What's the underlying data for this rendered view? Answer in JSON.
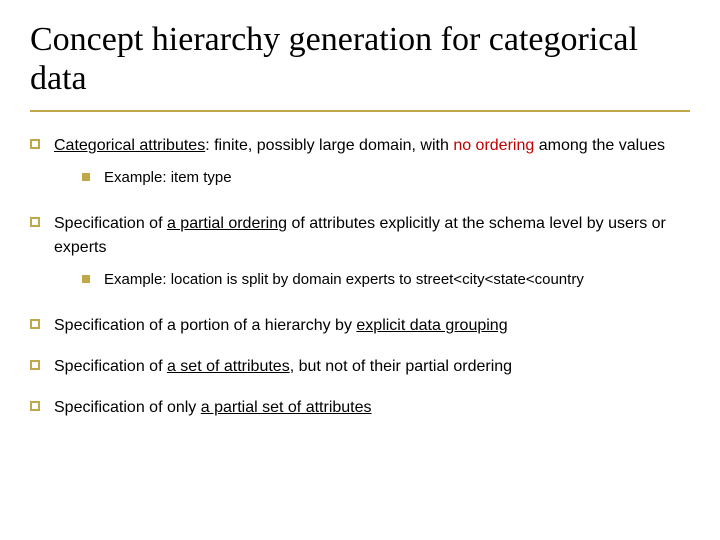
{
  "colors": {
    "accent": "#bfa74a",
    "text": "#000000",
    "highlight": "#c00000",
    "background": "#ffffff"
  },
  "typography": {
    "title_family": "Times New Roman",
    "body_family": "Verdana",
    "title_size_pt": 34,
    "l1_size_pt": 16,
    "l2_size_pt": 15
  },
  "title": "Concept hierarchy generation for categorical data",
  "items": [
    {
      "pre": "",
      "underline": "Categorical attributes",
      "mid": ": finite, possibly large domain, with ",
      "red": "no ordering",
      "post": " among the values",
      "sub": [
        "Example: item type"
      ]
    },
    {
      "pre": "Specification of ",
      "underline": "a partial ordering",
      "mid": " of attributes explicitly at the schema level by users or experts",
      "red": "",
      "post": "",
      "sub": [
        "Example: location is split by domain experts to street<city<state<country"
      ]
    },
    {
      "pre": "Specification of a portion of a hierarchy by ",
      "underline": "explicit data grouping",
      "mid": "",
      "red": "",
      "post": "",
      "sub": []
    },
    {
      "pre": "Specification of ",
      "underline": "a set of attributes",
      "mid": ", but not of their partial ordering",
      "red": "",
      "post": "",
      "sub": []
    },
    {
      "pre": "Specification of only ",
      "underline": "a partial set of attributes",
      "mid": "",
      "red": "",
      "post": "",
      "sub": []
    }
  ]
}
